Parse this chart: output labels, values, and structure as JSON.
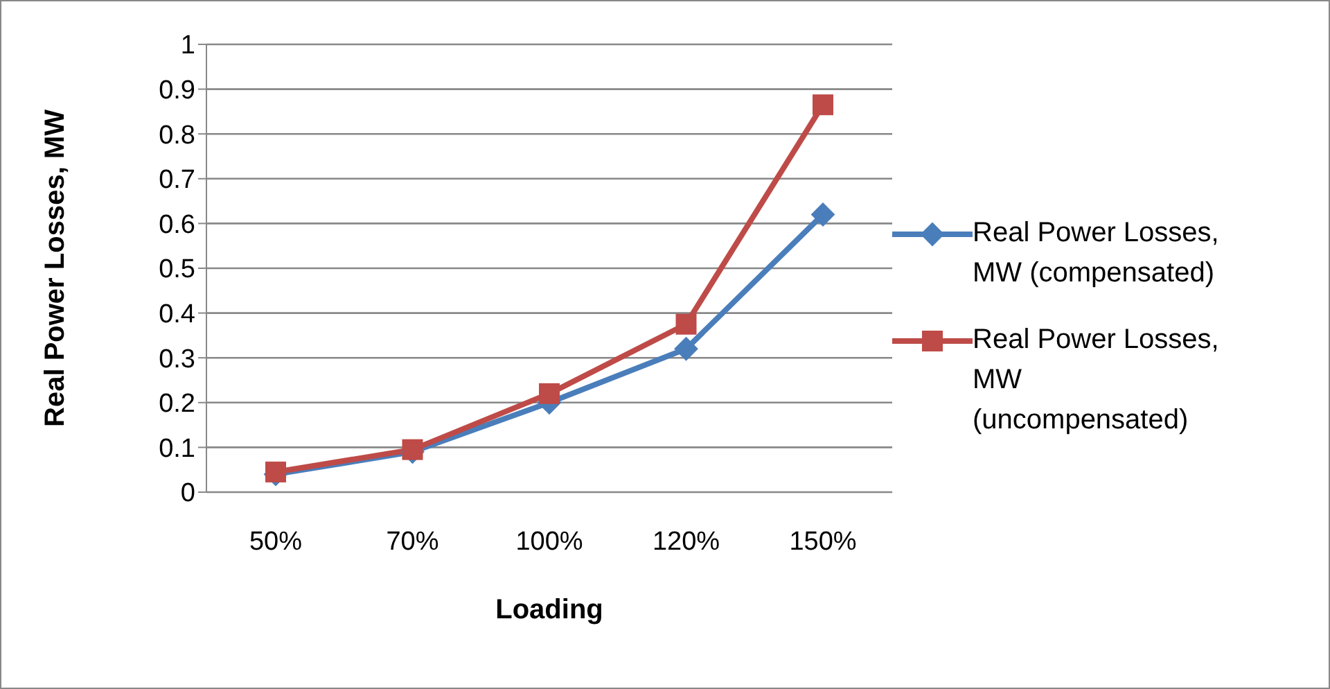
{
  "chart_data": {
    "type": "line",
    "xlabel": "Loading",
    "ylabel": "Real Power Losses, MW",
    "categories": [
      "50%",
      "70%",
      "100%",
      "120%",
      "150%"
    ],
    "series": [
      {
        "name": "Real Power Losses, MW (compensated)",
        "color": "#4a7ebb",
        "marker": "diamond",
        "values": [
          0.04,
          0.09,
          0.2,
          0.32,
          0.62
        ]
      },
      {
        "name": "Real Power Losses, MW (uncompensated)",
        "color": "#be4b48",
        "marker": "square",
        "values": [
          0.045,
          0.095,
          0.22,
          0.375,
          0.865
        ]
      }
    ],
    "ylim": [
      0,
      1
    ],
    "yticks": [
      0,
      0.1,
      0.2,
      0.3,
      0.4,
      0.5,
      0.6,
      0.7,
      0.8,
      0.9,
      1
    ],
    "grid": "y",
    "legend": "right",
    "line_style": "solid"
  }
}
